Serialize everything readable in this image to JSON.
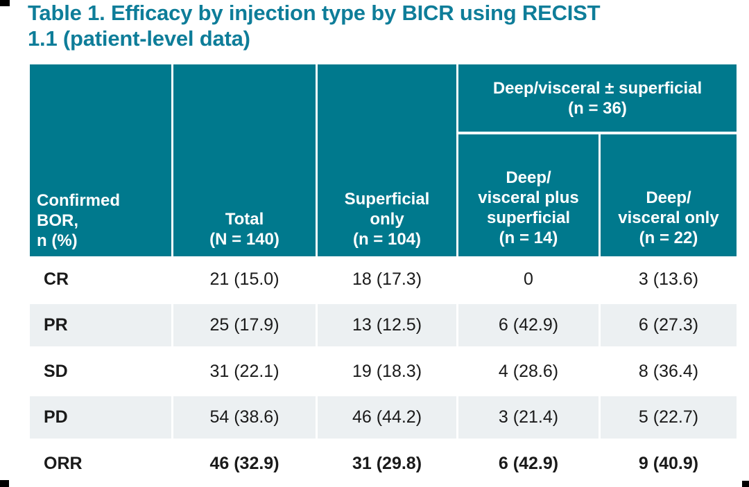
{
  "title": {
    "line1": "Table 1. Efficacy by injection type by BICR using RECIST",
    "line2": "1.1 (patient-level data)"
  },
  "colors": {
    "header_teal": "#00798d",
    "title_teal": "#0e7d99",
    "row_stripe_gray": "#ecf0f2",
    "body_text": "#1a1a1a",
    "header_text": "#ffffff"
  },
  "table": {
    "header": {
      "row_header_lines": [
        "Confirmed",
        "BOR,",
        "n (%)"
      ],
      "total_lines": [
        "Total",
        "(N = 140)"
      ],
      "superficial_lines": [
        "Superficial",
        "only",
        "(n = 104)"
      ],
      "group_lines": [
        "Deep/visceral ± superficial",
        "(n = 36)"
      ],
      "deep_plus_lines": [
        "Deep/",
        "visceral plus",
        "superficial",
        "(n = 14)"
      ],
      "deep_only_lines": [
        "Deep/",
        "visceral only",
        "(n = 22)"
      ]
    },
    "rows": [
      {
        "label": "CR",
        "total": "21 (15.0)",
        "superficial": "18 (17.3)",
        "deep_plus": "0",
        "deep_only": "3 (13.6)"
      },
      {
        "label": "PR",
        "total": "25 (17.9)",
        "superficial": "13 (12.5)",
        "deep_plus": "6 (42.9)",
        "deep_only": "6 (27.3)"
      },
      {
        "label": "SD",
        "total": "31 (22.1)",
        "superficial": "19 (18.3)",
        "deep_plus": "4 (28.6)",
        "deep_only": "8 (36.4)"
      },
      {
        "label": "PD",
        "total": "54 (38.6)",
        "superficial": "46 (44.2)",
        "deep_plus": "3 (21.4)",
        "deep_only": "5 (22.7)"
      },
      {
        "label": "ORR",
        "total": "46 (32.9)",
        "superficial": "31 (29.8)",
        "deep_plus": "6 (42.9)",
        "deep_only": "9 (40.9)"
      }
    ]
  },
  "chart_data": {
    "type": "table",
    "title": "Table 1. Efficacy by injection type by BICR using RECIST 1.1 (patient-level data)",
    "columns": [
      "Confirmed BOR, n (%)",
      "Total (N = 140)",
      "Superficial only (n = 104)",
      "Deep/visceral plus superficial (n = 14)",
      "Deep/visceral only (n = 22)"
    ],
    "column_group": {
      "label": "Deep/visceral ± superficial (n = 36)",
      "spans": [
        "Deep/visceral plus superficial (n = 14)",
        "Deep/visceral only (n = 22)"
      ]
    },
    "rows": [
      {
        "label": "CR",
        "values": [
          "21 (15.0)",
          "18 (17.3)",
          "0",
          "3 (13.6)"
        ]
      },
      {
        "label": "PR",
        "values": [
          "25 (17.9)",
          "13 (12.5)",
          "6 (42.9)",
          "6 (27.3)"
        ]
      },
      {
        "label": "SD",
        "values": [
          "31 (22.1)",
          "19 (18.3)",
          "4 (28.6)",
          "8 (36.4)"
        ]
      },
      {
        "label": "PD",
        "values": [
          "54 (38.6)",
          "46 (44.2)",
          "3 (21.4)",
          "5 (22.7)"
        ]
      },
      {
        "label": "ORR",
        "values": [
          "46 (32.9)",
          "31 (29.8)",
          "6 (42.9)",
          "9 (40.9)"
        ],
        "emphasis": true
      }
    ]
  }
}
